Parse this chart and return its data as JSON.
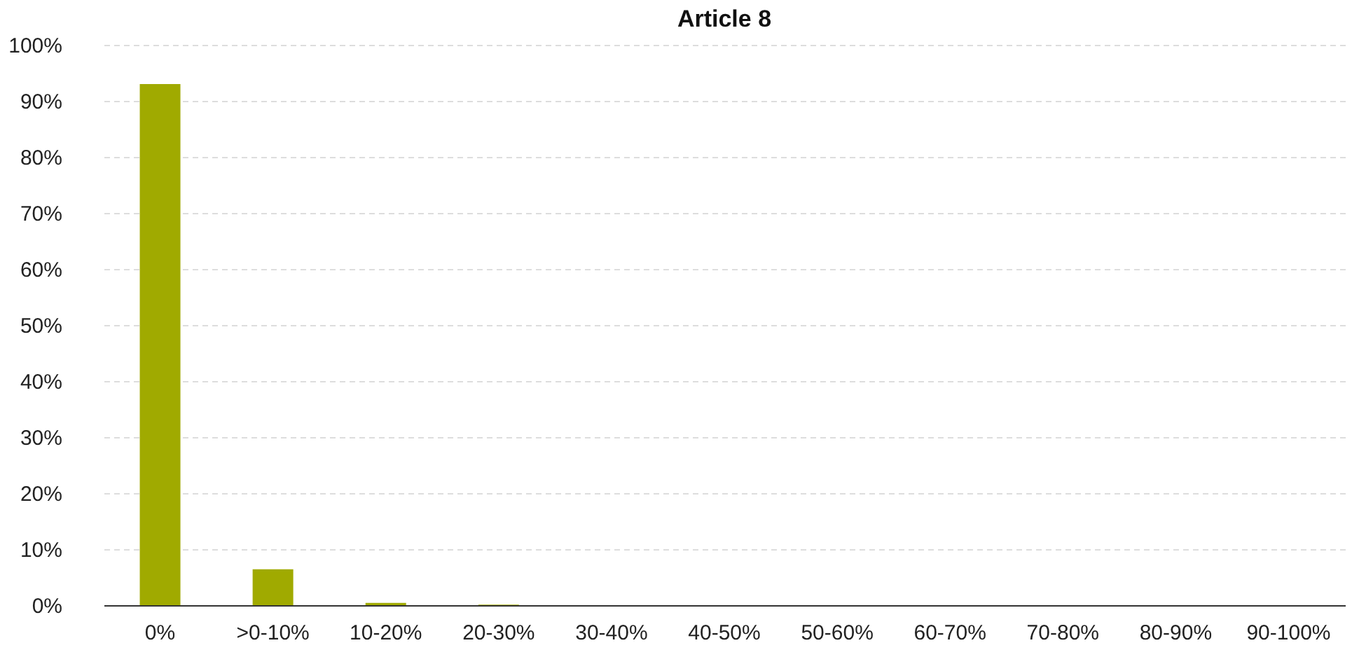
{
  "chart_data": {
    "type": "bar",
    "title": "Article 8",
    "categories": [
      "0%",
      ">0-10%",
      "10-20%",
      "20-30%",
      "30-40%",
      "40-50%",
      "50-60%",
      "60-70%",
      "70-80%",
      "80-90%",
      "90-100%"
    ],
    "values": [
      93,
      6.4,
      0.4,
      0.1,
      0,
      0,
      0,
      0,
      0,
      0,
      0
    ],
    "color": "#a0aa00",
    "ylim": [
      0,
      100
    ],
    "yticks": [
      {
        "value": 0,
        "label": "0%"
      },
      {
        "value": 10,
        "label": "10%"
      },
      {
        "value": 20,
        "label": "20%"
      },
      {
        "value": 30,
        "label": "30%"
      },
      {
        "value": 40,
        "label": "40%"
      },
      {
        "value": 50,
        "label": "50%"
      },
      {
        "value": 60,
        "label": "60%"
      },
      {
        "value": 70,
        "label": "70%"
      },
      {
        "value": 80,
        "label": "80%"
      },
      {
        "value": 90,
        "label": "90%"
      },
      {
        "value": 100,
        "label": "100%"
      }
    ],
    "grid": "y"
  }
}
